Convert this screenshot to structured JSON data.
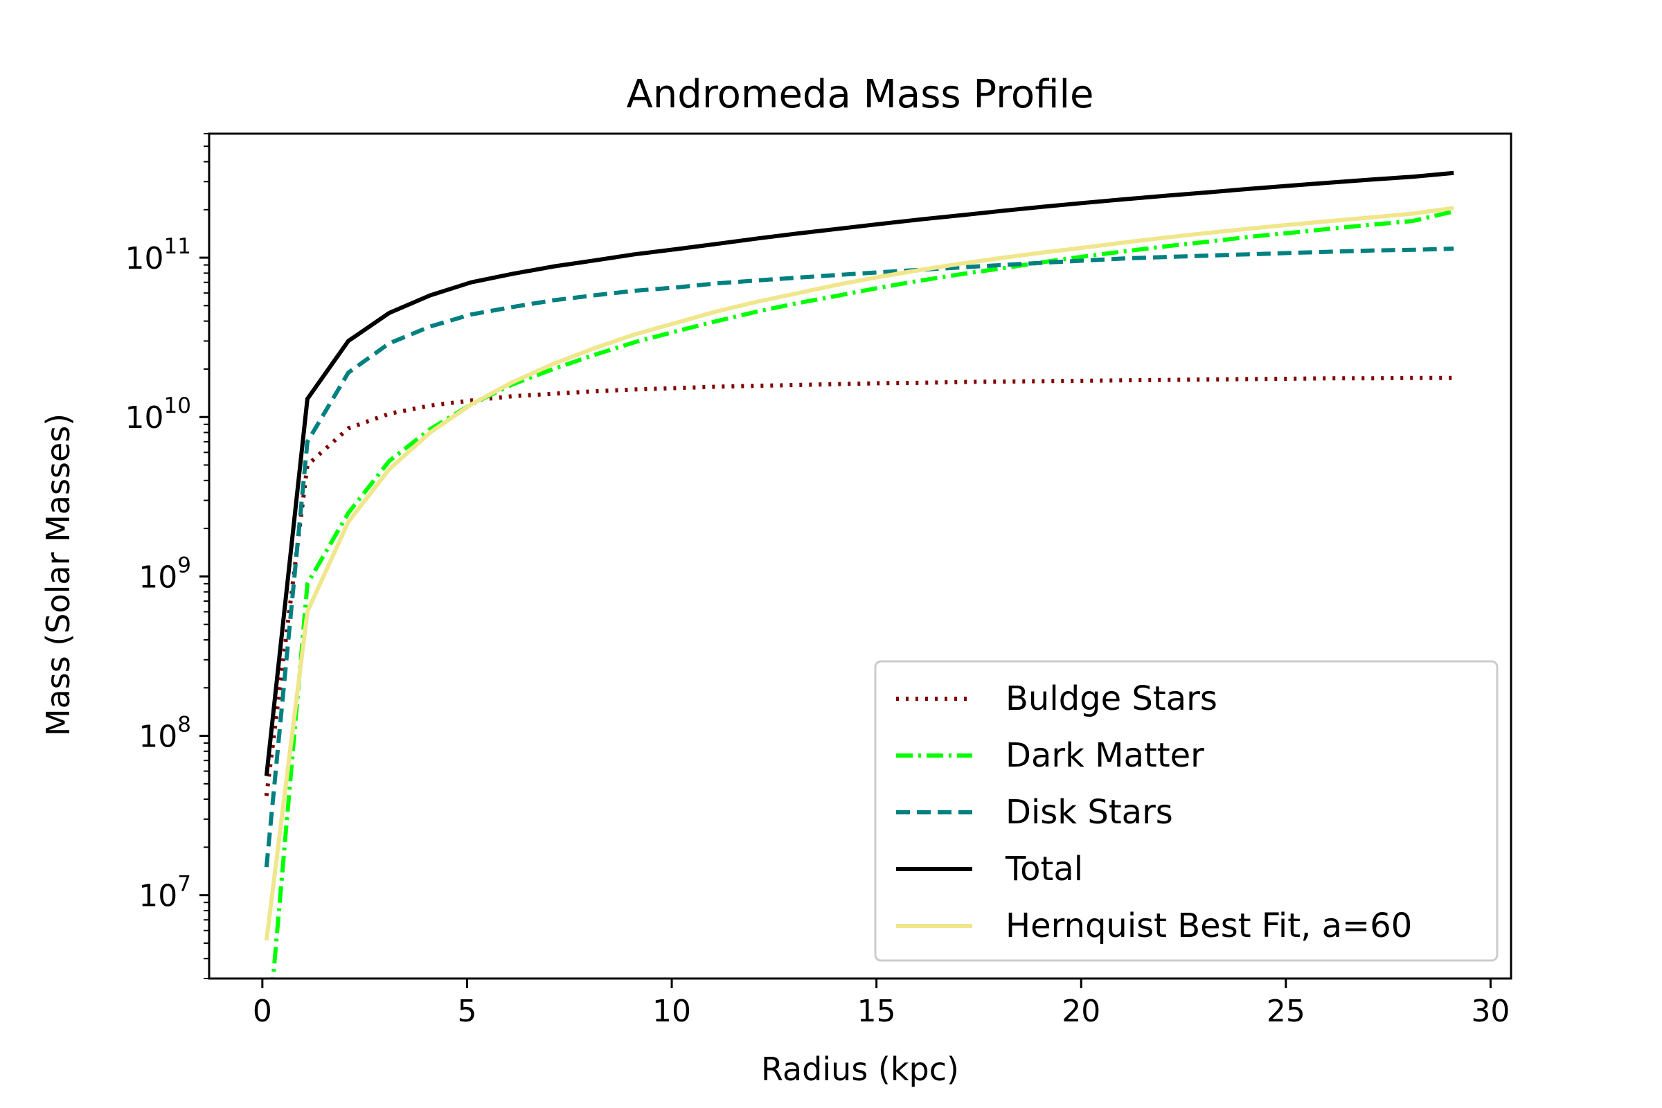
{
  "chart_data": {
    "type": "line",
    "title": "Andromeda Mass Profile",
    "xlabel": "Radius (kpc)",
    "ylabel": "Mass (Solar Masses)",
    "xlim": [
      -1.3,
      30.5
    ],
    "ylim": [
      3000000.0,
      600000000000.0
    ],
    "yscale": "log",
    "grid": false,
    "legend_position": "lower-right",
    "xticks": [
      0,
      5,
      10,
      15,
      20,
      25,
      30
    ],
    "yticks": [
      {
        "value": 10000000.0,
        "base": "10",
        "exp": "7"
      },
      {
        "value": 100000000.0,
        "base": "10",
        "exp": "8"
      },
      {
        "value": 1000000000.0,
        "base": "10",
        "exp": "9"
      },
      {
        "value": 10000000000.0,
        "base": "10",
        "exp": "10"
      },
      {
        "value": 100000000000.0,
        "base": "10",
        "exp": "11"
      }
    ],
    "x": [
      0.1,
      1.1,
      2.1,
      3.1,
      4.1,
      5.1,
      6.1,
      7.1,
      8.1,
      9.1,
      10.1,
      11.1,
      12.1,
      13.1,
      14.1,
      15.1,
      16.1,
      17.1,
      18.1,
      19.1,
      20.1,
      21.1,
      22.1,
      23.1,
      24.1,
      25.1,
      26.1,
      27.1,
      28.1,
      29.1
    ],
    "series": [
      {
        "name": "Buldge Stars",
        "color": "#800000",
        "style": "dotted",
        "values": [
          42000000.0,
          5000000000.0,
          8500000000.0,
          10500000000.0,
          11800000000.0,
          12700000000.0,
          13500000000.0,
          14000000000.0,
          14500000000.0,
          14900000000.0,
          15200000000.0,
          15500000000.0,
          15700000000.0,
          15900000000.0,
          16100000000.0,
          16300000000.0,
          16400000000.0,
          16600000000.0,
          16700000000.0,
          16800000000.0,
          16900000000.0,
          17000000000.0,
          17100000000.0,
          17200000000.0,
          17300000000.0,
          17400000000.0,
          17500000000.0,
          17500000000.0,
          17600000000.0,
          17600000000.0
        ]
      },
      {
        "name": "Dark Matter",
        "color": "#00ff00",
        "style": "dashdot",
        "values": [
          1000000.0,
          900000000.0,
          2500000000.0,
          5300000000.0,
          8400000000.0,
          12000000000.0,
          16000000000.0,
          20000000000.0,
          24500000000.0,
          29500000000.0,
          34500000000.0,
          40000000000.0,
          46000000000.0,
          52000000000.0,
          58000000000.0,
          65000000000.0,
          72000000000.0,
          79000000000.0,
          86000000000.0,
          94000000000.0,
          102000000000.0,
          110000000000.0,
          118000000000.0,
          126000000000.0,
          135000000000.0,
          143000000000.0,
          152000000000.0,
          161000000000.0,
          170000000000.0,
          195000000000.0
        ]
      },
      {
        "name": "Disk Stars",
        "color": "#008080",
        "style": "dashed",
        "values": [
          15000000.0,
          7000000000.0,
          19000000000.0,
          29000000000.0,
          37000000000.0,
          44000000000.0,
          49000000000.0,
          54000000000.0,
          58000000000.0,
          62000000000.0,
          65000000000.0,
          69000000000.0,
          72000000000.0,
          75000000000.0,
          78000000000.0,
          81000000000.0,
          84000000000.0,
          87000000000.0,
          90000000000.0,
          93000000000.0,
          96000000000.0,
          99000000000.0,
          101000000000.0,
          103000000000.0,
          105000000000.0,
          107000000000.0,
          109000000000.0,
          111000000000.0,
          112000000000.0,
          114000000000.0
        ]
      },
      {
        "name": "Total",
        "color": "#000000",
        "style": "solid",
        "values": [
          56000000.0,
          13000000000.0,
          30000000000.0,
          45000000000.0,
          58000000000.0,
          70000000000.0,
          79000000000.0,
          88000000000.0,
          96000000000.0,
          105000000000.0,
          113000000000.0,
          122000000000.0,
          132000000000.0,
          142000000000.0,
          152000000000.0,
          163000000000.0,
          174000000000.0,
          185000000000.0,
          197000000000.0,
          209000000000.0,
          221000000000.0,
          233000000000.0,
          245000000000.0,
          257000000000.0,
          270000000000.0,
          283000000000.0,
          296000000000.0,
          309000000000.0,
          322000000000.0,
          340000000000.0
        ]
      },
      {
        "name": "Hernquist Best Fit, a=60",
        "color": "#f0e68c",
        "style": "solid",
        "values": [
          5200000.0,
          600000000.0,
          2200000000.0,
          4700000000.0,
          8000000000.0,
          12000000000.0,
          16500000000.0,
          21500000000.0,
          27000000000.0,
          33000000000.0,
          39000000000.0,
          46000000000.0,
          53000000000.0,
          60000000000.0,
          68000000000.0,
          76000000000.0,
          84000000000.0,
          92000000000.0,
          100000000000.0,
          108000000000.0,
          116000000000.0,
          125000000000.0,
          134000000000.0,
          143000000000.0,
          152000000000.0,
          161000000000.0,
          170000000000.0,
          179000000000.0,
          189000000000.0,
          205000000000.0
        ]
      }
    ]
  }
}
